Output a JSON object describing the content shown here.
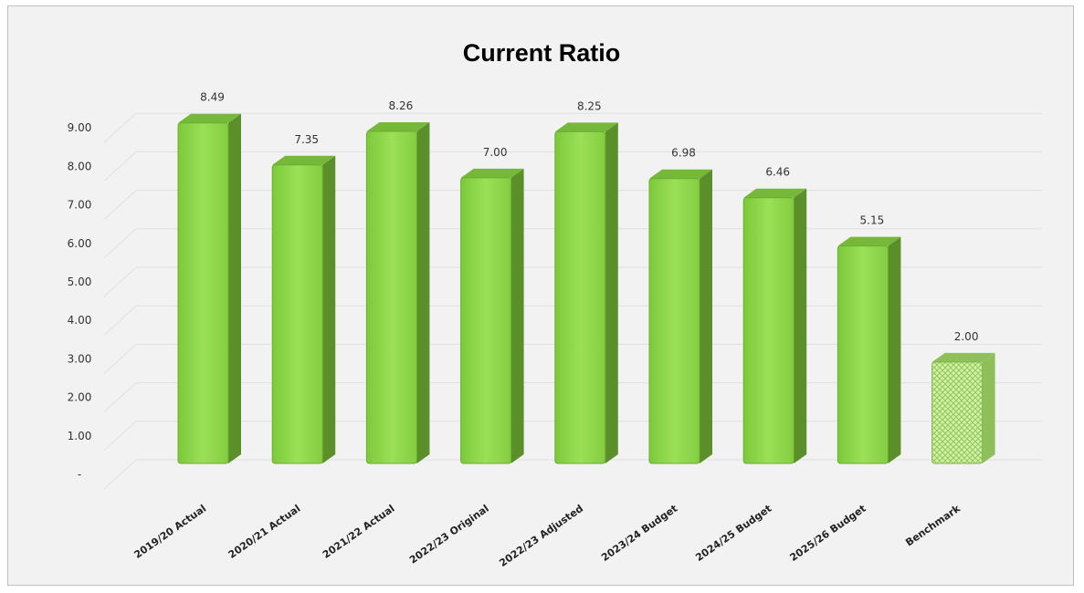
{
  "chart_data": {
    "type": "bar",
    "title": "Current Ratio",
    "xlabel": "",
    "ylabel": "",
    "categories": [
      "2019/20 Actual",
      "2020/21 Actual",
      "2021/22 Actual",
      "2022/23 Original",
      "2022/23 Adjusted",
      "2023/24 Budget",
      "2024/25 Budget",
      "2025/26 Budget",
      "Benchmark"
    ],
    "values": [
      8.49,
      7.35,
      8.26,
      7.0,
      8.25,
      6.98,
      6.46,
      5.15,
      2.0
    ],
    "data_labels": [
      "8.49",
      "7.35",
      "8.26",
      "7.00",
      "8.25",
      "6.98",
      "6.46",
      "5.15",
      "2.00"
    ],
    "y_ticks": [
      "-",
      "1.00",
      "2.00",
      "3.00",
      "4.00",
      "5.00",
      "6.00",
      "7.00",
      "8.00",
      "9.00"
    ],
    "ylim": [
      0,
      9
    ],
    "grid": true,
    "legend": "none",
    "colors": {
      "bar_front": "#8fd44a",
      "bar_side": "#5a8f2a",
      "bar_top": "#76b83a",
      "benchmark_front": "#c8ec96",
      "benchmark_side": "#8fbf5a",
      "gridline": "#e0e0e0",
      "background": "#f2f2f2"
    }
  }
}
